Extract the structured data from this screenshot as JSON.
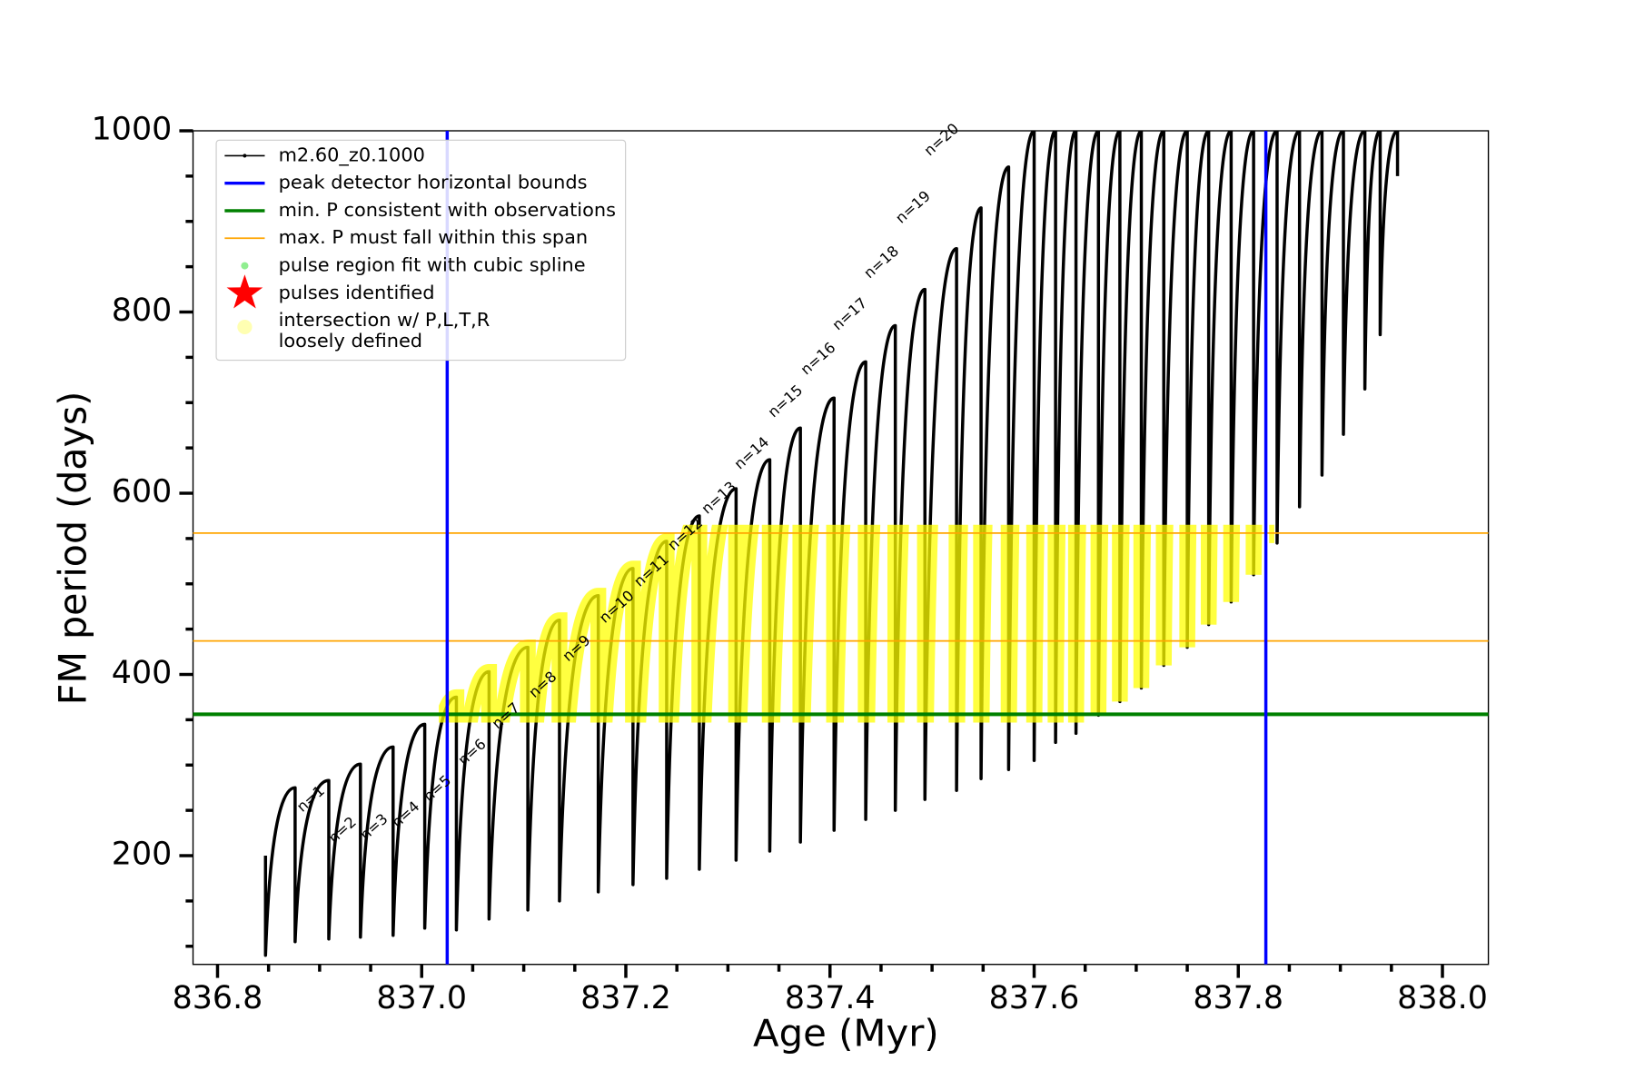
{
  "chart_data": {
    "type": "line",
    "xlabel": "Age (Myr)",
    "ylabel": "FM period (days)",
    "xlim": [
      836.776,
      838.045
    ],
    "ylim": [
      80,
      1000
    ],
    "xticks": [
      836.8,
      {
        "value": 837.0,
        "label": "837.0"
      },
      837.2,
      837.4,
      837.6,
      837.8,
      {
        "value": 838.0,
        "label": "838.0"
      }
    ],
    "yticks": [
      200,
      400,
      600,
      800,
      1000
    ],
    "xticks_minor": [
      836.85,
      836.9,
      836.95,
      837.05,
      837.1,
      837.15,
      837.25,
      837.3,
      837.35,
      837.45,
      837.5,
      837.55,
      837.65,
      837.7,
      837.75,
      837.85,
      837.9,
      837.95
    ],
    "yticks_minor": [
      100,
      150,
      250,
      300,
      350,
      450,
      500,
      550,
      650,
      700,
      750,
      850,
      900,
      950
    ],
    "legend": "upper left",
    "series": [
      {
        "name": "m2.60_z0.1000",
        "color": "#000000",
        "x": [
          836.847,
          836.847,
          836.876,
          836.876,
          836.909,
          836.909,
          836.94,
          836.94,
          836.972,
          836.972,
          837.003,
          837.003,
          837.034,
          837.034,
          837.066,
          837.066,
          837.104,
          837.104,
          837.135,
          837.135,
          837.173,
          837.173,
          837.207,
          837.207,
          837.24,
          837.24,
          837.272,
          837.272,
          837.308,
          837.308,
          837.341,
          837.341,
          837.371,
          837.371,
          837.404,
          837.404,
          837.435,
          837.435,
          837.464,
          837.464,
          837.493,
          837.493,
          837.524,
          837.524,
          837.548,
          837.548,
          837.575,
          837.575,
          837.6,
          837.6,
          837.621,
          837.621,
          837.641,
          837.641,
          837.663,
          837.663,
          837.684,
          837.684,
          837.705,
          837.705,
          837.727,
          837.727,
          837.75,
          837.75,
          837.771,
          837.771,
          837.793,
          837.793,
          837.815,
          837.815,
          837.838,
          837.838,
          837.86,
          837.86,
          837.882,
          837.882,
          837.903,
          837.903,
          837.924,
          837.924,
          837.939,
          837.939,
          837.956,
          837.956
        ],
        "values": [
          200,
          90,
          275,
          105,
          283,
          108,
          301,
          110,
          320,
          112,
          345,
          120,
          375,
          118,
          403,
          130,
          430,
          140,
          460,
          150,
          487,
          160,
          517,
          168,
          547,
          175,
          575,
          185,
          605,
          195,
          637,
          205,
          672,
          215,
          705,
          228,
          745,
          240,
          785,
          250,
          825,
          262,
          870,
          272,
          915,
          285,
          960,
          295,
          1000,
          305,
          1000,
          325,
          1000,
          335,
          1000,
          355,
          1000,
          370,
          1000,
          385,
          1000,
          410,
          1000,
          430,
          1000,
          455,
          1000,
          480,
          1000,
          510,
          1000,
          545,
          1000,
          585,
          1000,
          620,
          1000,
          665,
          1000,
          715,
          1000,
          775,
          1000,
          950
        ]
      }
    ],
    "vlines": {
      "name": "peak detector horizontal bounds",
      "color": "#0000ff",
      "values": [
        837.025,
        837.827
      ]
    },
    "hlines": [
      {
        "name": "min. P consistent with observations",
        "color": "#008000",
        "values": [
          356
        ]
      },
      {
        "name": "max. P must fall within this span",
        "color": "#ffa500",
        "values": [
          437,
          556
        ]
      }
    ],
    "legend_extra": [
      {
        "name": [
          "pulse region fit with cubic spline"
        ],
        "color": "#90ee90",
        "marker": "circle"
      },
      {
        "name": [
          "pulses identified"
        ],
        "color": "#ff0000",
        "marker": "star"
      },
      {
        "name": [
          "intersection w/ P,L,T,R",
          "loosely defined"
        ],
        "color": "#ffff00",
        "marker": "circle"
      }
    ],
    "annotations": [
      "n=1",
      "n=2",
      "n=3",
      "n=4",
      "n=5",
      "n=6",
      "n=7",
      "n=8",
      "n=9",
      "n=10",
      "n=11",
      "n=12",
      "n=13",
      "n=14",
      "n=15",
      "n=16",
      "n=17",
      "n=18",
      "n=19",
      "n=20"
    ]
  }
}
